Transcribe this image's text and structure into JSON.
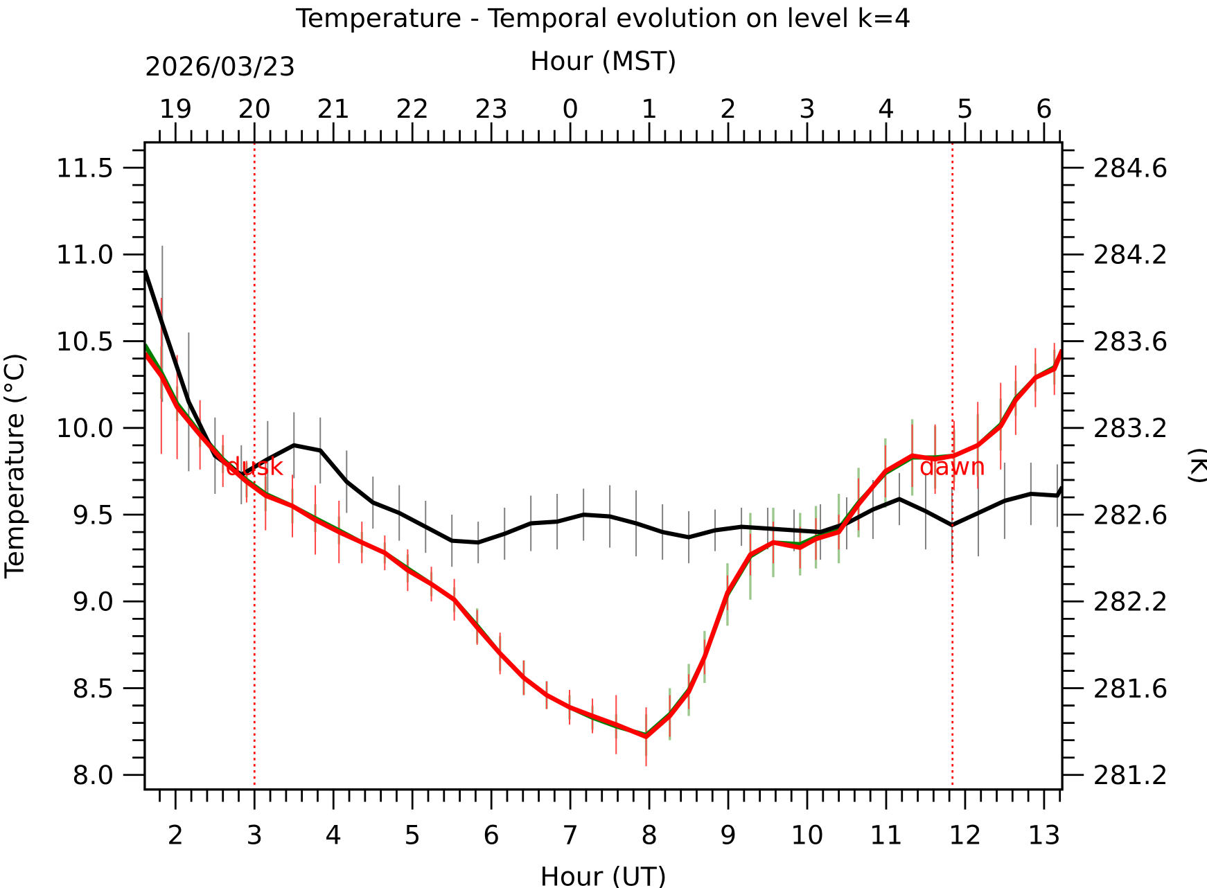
{
  "chart_data": {
    "type": "line",
    "title": "Temperature - Temporal evolution on level k=4",
    "xlabel": "Hour (UT)",
    "x2label": "Hour (MST)",
    "date_label": "2026/03/23",
    "ylabel": "Temperature (°C)",
    "y2label": "(K)",
    "xlim": [
      1.61,
      13.23
    ],
    "ylim": [
      7.916,
      11.646
    ],
    "x_ticks": [
      2,
      3,
      4,
      5,
      6,
      7,
      8,
      9,
      10,
      11,
      12,
      13
    ],
    "x_tick_labels": [
      "2",
      "3",
      "4",
      "5",
      "6",
      "7",
      "8",
      "9",
      "10",
      "11",
      "12",
      "13"
    ],
    "x2_tick_labels": [
      "19",
      "20",
      "21",
      "22",
      "23",
      "0",
      "1",
      "2",
      "3",
      "4",
      "5",
      "6"
    ],
    "y_ticks": [
      8.0,
      8.5,
      9.0,
      9.5,
      10.0,
      10.5,
      11.0,
      11.5
    ],
    "y_tick_labels": [
      "8.0",
      "8.5",
      "9.0",
      "9.5",
      "10.0",
      "10.5",
      "11.0",
      "11.5"
    ],
    "y2_tick_labels": [
      "281.2",
      "281.6",
      "282.2",
      "282.6",
      "283.2",
      "283.6",
      "284.2",
      "284.6"
    ],
    "grid": false,
    "annotations": [
      {
        "text": "dusk",
        "x": 3.0,
        "color": "#ff0000"
      },
      {
        "text": "dawn",
        "x": 11.84,
        "color": "#ff0000"
      }
    ],
    "series": [
      {
        "color": "#000000",
        "x": [
          1.61,
          1.833,
          2.167,
          2.5,
          2.833,
          3.167,
          3.5,
          3.833,
          4.167,
          4.5,
          4.833,
          5.167,
          5.5,
          5.833,
          6.167,
          6.5,
          6.833,
          7.167,
          7.5,
          7.833,
          8.167,
          8.5,
          8.833,
          9.167,
          9.5,
          9.833,
          10.167,
          10.5,
          10.833,
          11.167,
          11.5,
          11.833,
          12.167,
          12.5,
          12.833,
          13.167,
          13.23
        ],
        "y": [
          10.91,
          10.6,
          10.15,
          9.84,
          9.73,
          9.82,
          9.9,
          9.87,
          9.69,
          9.57,
          9.51,
          9.43,
          9.35,
          9.34,
          9.39,
          9.45,
          9.46,
          9.5,
          9.49,
          9.45,
          9.4,
          9.37,
          9.41,
          9.43,
          9.42,
          9.41,
          9.4,
          9.45,
          9.53,
          9.59,
          9.52,
          9.44,
          9.51,
          9.58,
          9.62,
          9.61,
          9.66
        ],
        "err": [
          0,
          0.45,
          0.4,
          0.22,
          0.17,
          0.22,
          0.19,
          0.19,
          0.18,
          0.15,
          0.16,
          0.15,
          0.15,
          0.12,
          0.15,
          0.16,
          0.16,
          0.15,
          0.18,
          0.19,
          0.16,
          0.15,
          0.12,
          0.11,
          0.12,
          0.12,
          0.16,
          0.15,
          0.17,
          0.15,
          0.22,
          0.22,
          0.25,
          0.22,
          0.18,
          0.18,
          0
        ]
      },
      {
        "color": "#008000",
        "err_color": "#9dc88d",
        "x": [
          1.61,
          1.82,
          2.02,
          2.31,
          2.6,
          2.9,
          3.14,
          3.48,
          3.77,
          4.07,
          4.36,
          4.65,
          4.94,
          5.24,
          5.53,
          5.82,
          6.11,
          6.41,
          6.7,
          6.99,
          7.28,
          7.58,
          7.96,
          8.26,
          8.5,
          8.7,
          8.99,
          9.28,
          9.57,
          9.91,
          10.11,
          10.4,
          10.65,
          10.99,
          11.33,
          11.62,
          11.86,
          12.16,
          12.45,
          12.64,
          12.89,
          13.13,
          13.23
        ],
        "y": [
          10.48,
          10.32,
          10.14,
          9.97,
          9.82,
          9.7,
          9.62,
          9.55,
          9.48,
          9.41,
          9.34,
          9.28,
          9.19,
          9.1,
          9.01,
          8.86,
          8.7,
          8.56,
          8.46,
          8.39,
          8.33,
          8.28,
          8.23,
          8.35,
          8.49,
          8.68,
          9.04,
          9.26,
          9.34,
          9.33,
          9.37,
          9.42,
          9.57,
          9.74,
          9.83,
          9.83,
          9.84,
          9.9,
          10.02,
          10.17,
          10.29,
          10.35,
          10.45
        ],
        "err": [
          0.12,
          0.15,
          0.1,
          0.08,
          0.08,
          0.1,
          0.1,
          0.1,
          0.08,
          0.08,
          0.06,
          0.06,
          0.08,
          0.07,
          0.07,
          0.1,
          0.1,
          0.1,
          0.08,
          0.07,
          0.07,
          0.07,
          0.12,
          0.15,
          0.15,
          0.15,
          0.18,
          0.25,
          0.2,
          0.18,
          0.18,
          0.2,
          0.2,
          0.2,
          0.22,
          0.18,
          0.15,
          0.18,
          0.15,
          0.1,
          0.08,
          0.1,
          0.1
        ]
      },
      {
        "color": "#ff0000",
        "err_color": "#ff4444",
        "x": [
          1.61,
          1.82,
          2.02,
          2.31,
          2.6,
          2.9,
          3.14,
          3.48,
          3.77,
          4.07,
          4.36,
          4.65,
          4.94,
          5.24,
          5.53,
          5.82,
          6.11,
          6.41,
          6.7,
          6.99,
          7.28,
          7.58,
          7.96,
          8.26,
          8.5,
          8.7,
          8.99,
          9.28,
          9.57,
          9.91,
          10.11,
          10.4,
          10.65,
          10.99,
          11.33,
          11.62,
          11.86,
          12.16,
          12.45,
          12.64,
          12.89,
          13.13,
          13.23
        ],
        "y": [
          10.43,
          10.3,
          10.12,
          9.96,
          9.81,
          9.69,
          9.61,
          9.55,
          9.47,
          9.4,
          9.34,
          9.28,
          9.18,
          9.1,
          9.01,
          8.85,
          8.7,
          8.56,
          8.46,
          8.39,
          8.34,
          8.29,
          8.22,
          8.34,
          8.48,
          8.68,
          9.05,
          9.27,
          9.34,
          9.31,
          9.36,
          9.4,
          9.56,
          9.75,
          9.84,
          9.82,
          9.84,
          9.9,
          10.01,
          10.16,
          10.29,
          10.34,
          10.45
        ],
        "err": [
          0,
          0.45,
          0.3,
          0.2,
          0.15,
          0.12,
          0.2,
          0.18,
          0.2,
          0.18,
          0.12,
          0.1,
          0.12,
          0.1,
          0.12,
          0.1,
          0.12,
          0.1,
          0.08,
          0.1,
          0.1,
          0.17,
          0.17,
          0.12,
          0.1,
          0.1,
          0.1,
          0.12,
          0.12,
          0.12,
          0.12,
          0.1,
          0.15,
          0.15,
          0.18,
          0.2,
          0.2,
          0.25,
          0.25,
          0.2,
          0.17,
          0.15,
          0
        ]
      }
    ]
  }
}
